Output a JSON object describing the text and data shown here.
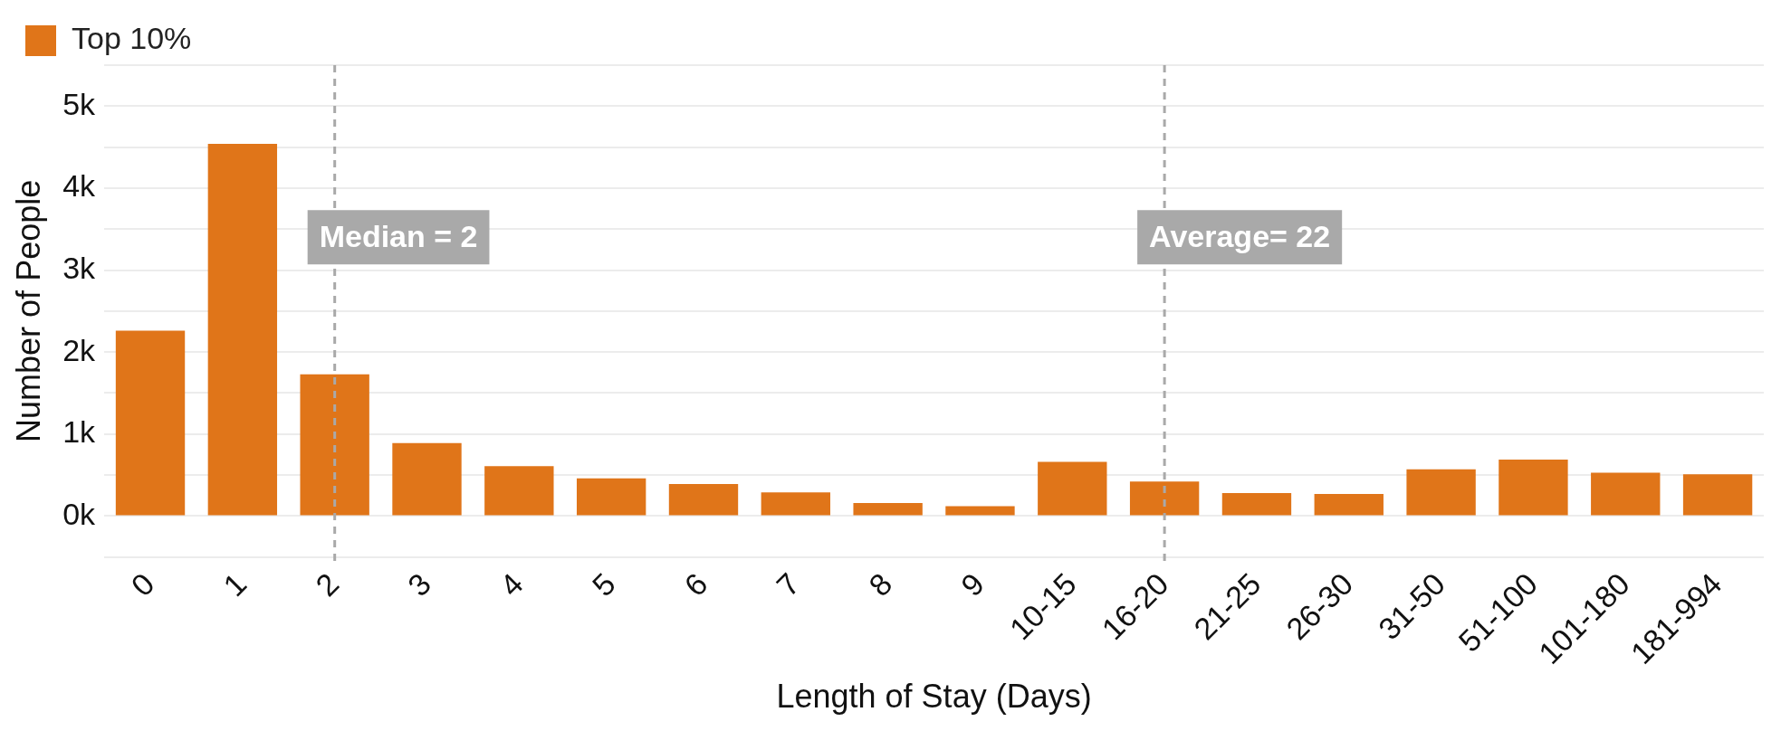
{
  "chart_data": {
    "type": "bar",
    "xlabel": "Length of Stay (Days)",
    "ylabel": "Number of People",
    "categories": [
      "0",
      "1",
      "2",
      "3",
      "4",
      "5",
      "6",
      "7",
      "8",
      "9",
      "10-15",
      "16-20",
      "21-25",
      "26-30",
      "31-50",
      "51-100",
      "101-180",
      "181-994"
    ],
    "series": [
      {
        "name": "Top 10%",
        "color": "#e07519",
        "values": [
          2260,
          4540,
          1730,
          890,
          610,
          460,
          390,
          290,
          160,
          120,
          660,
          420,
          280,
          270,
          570,
          690,
          530,
          510
        ]
      }
    ],
    "ylim": [
      -500,
      5500
    ],
    "yticks": [
      {
        "value": -500,
        "label": null
      },
      {
        "value": 0,
        "label": "0k"
      },
      {
        "value": 500,
        "label": null
      },
      {
        "value": 1000,
        "label": "1k"
      },
      {
        "value": 1500,
        "label": null
      },
      {
        "value": 2000,
        "label": "2k"
      },
      {
        "value": 2500,
        "label": null
      },
      {
        "value": 3000,
        "label": "3k"
      },
      {
        "value": 3500,
        "label": null
      },
      {
        "value": 4000,
        "label": "4k"
      },
      {
        "value": 4500,
        "label": null
      },
      {
        "value": 5000,
        "label": "5k"
      },
      {
        "value": 5500,
        "label": null
      }
    ],
    "ref_lines": [
      {
        "axis": "x",
        "value": "2",
        "label": "Median = 2",
        "color": "#a9a9a9",
        "line_style": "dashed"
      },
      {
        "axis": "x",
        "value": "16-20",
        "label": "Average= 22",
        "color": "#a9a9a9",
        "line_style": "dashed"
      }
    ],
    "grid": "y",
    "legend": "top left"
  }
}
